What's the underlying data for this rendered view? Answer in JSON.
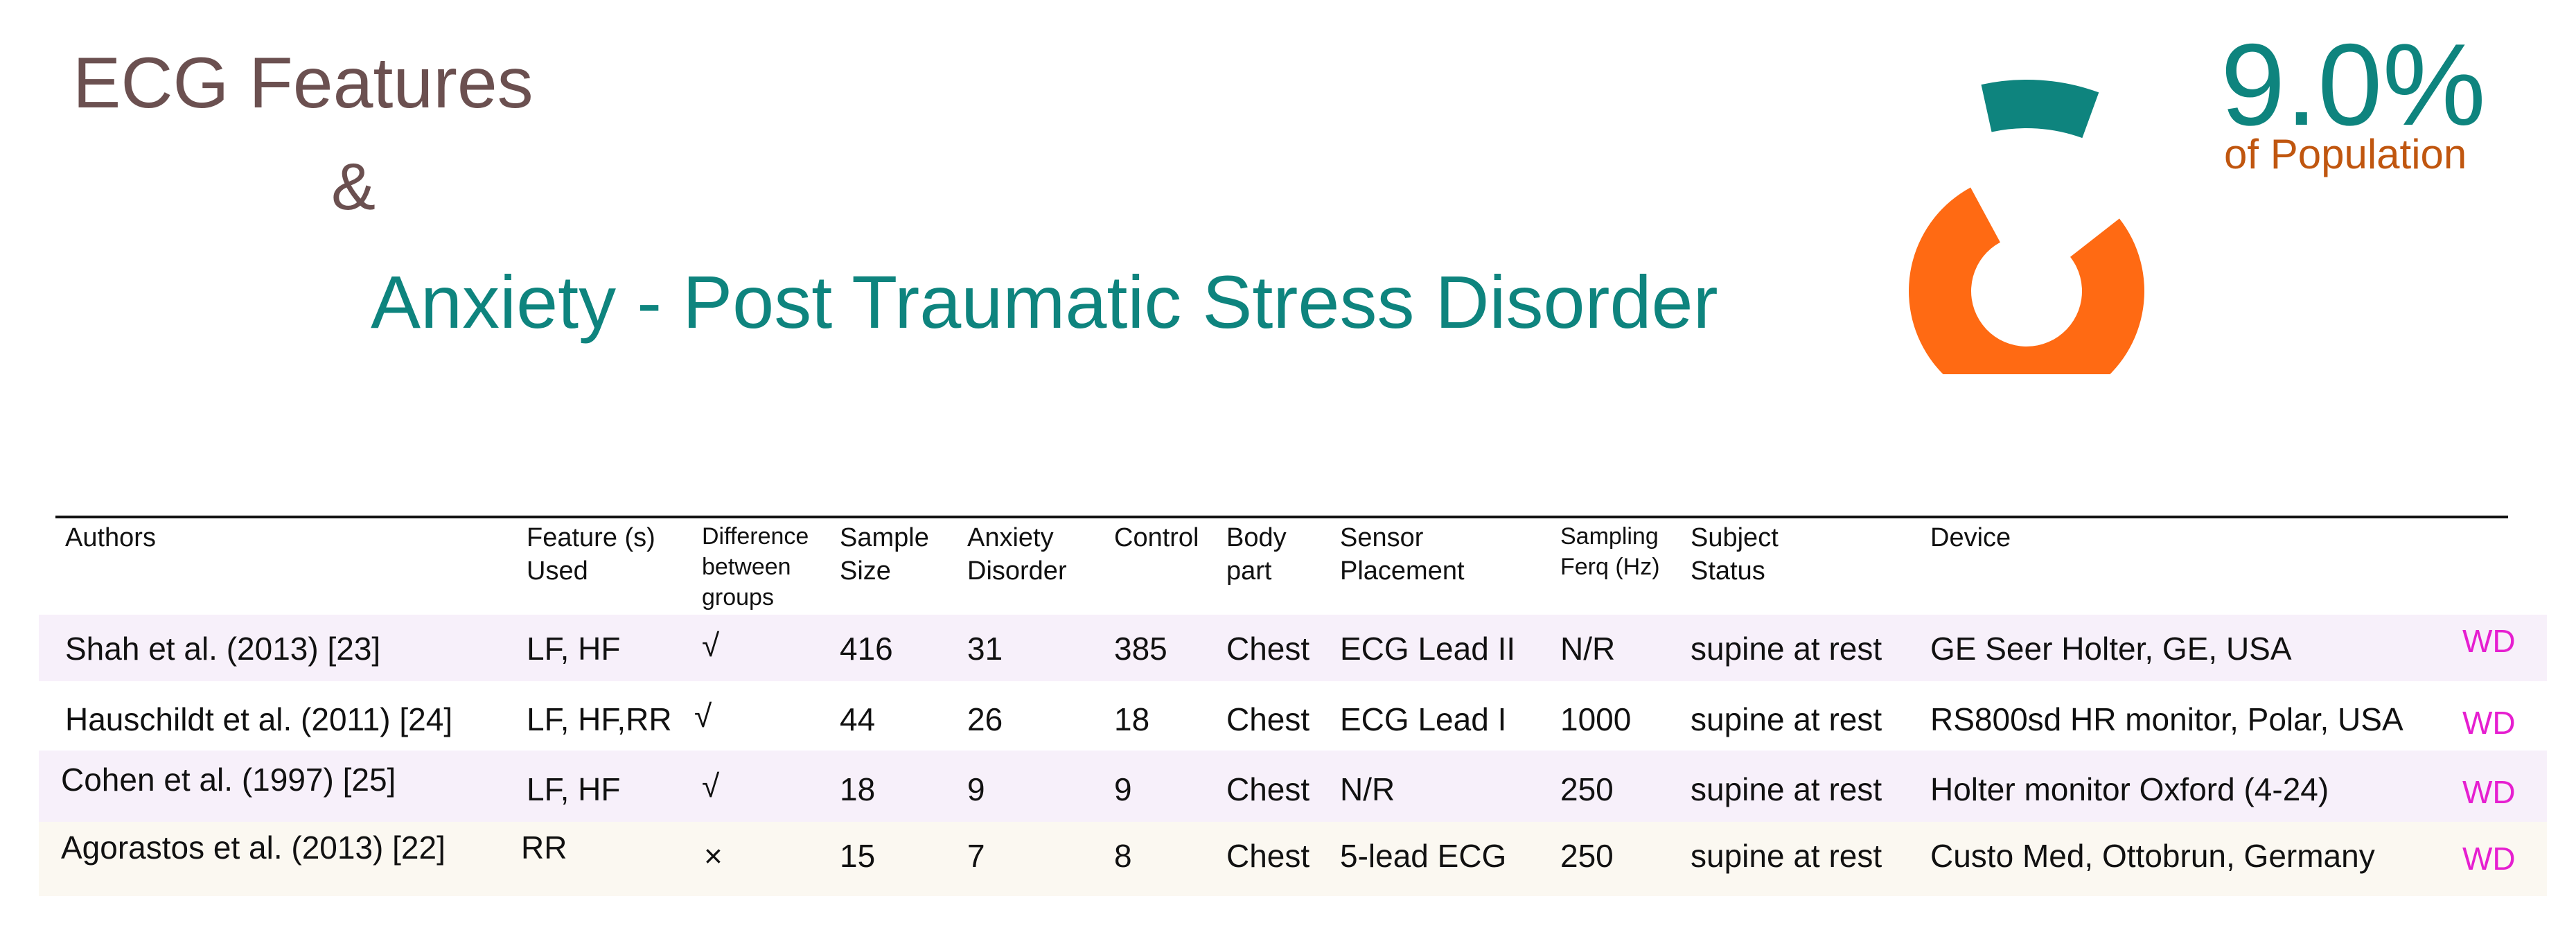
{
  "slide": {
    "title_line1": "ECG Features",
    "ampersand": "&",
    "title_line2": "Anxiety - Post Traumatic Stress Disorder"
  },
  "stat": {
    "value": "9.0%",
    "label": "of Population",
    "fraction": 0.09,
    "colors": {
      "highlight": "#0e847e",
      "remainder": "#ff6a13",
      "label": "#c0560f"
    }
  },
  "table": {
    "headers": [
      "Authors",
      "Feature (s)\nUsed",
      "Difference\nbetween\ngroups",
      "Sample\nSize",
      "Anxiety\nDisorder",
      "Control",
      "Body\npart",
      "Sensor\nPlacement",
      "Sampling\nFerq (Hz)",
      "Subject\nStatus",
      "Device"
    ],
    "rows": [
      {
        "cells": [
          "Shah et al.   (2013)  [23]",
          "LF, HF",
          "√",
          "416",
          "31",
          "385",
          "Chest",
          "ECG Lead II",
          "N/R",
          "supine at rest",
          "GE Seer Holter, GE, USA"
        ],
        "tag": "WD"
      },
      {
        "cells": [
          "Hauschildt et al. (2011) [24]",
          "LF, HF,RR",
          "√",
          "44",
          "26",
          "18",
          "Chest",
          "ECG Lead I",
          "1000",
          "supine at rest",
          "RS800sd HR monitor, Polar, USA"
        ],
        "tag": "WD"
      },
      {
        "cells": [
          "Cohen  et al.   (1997)  [25]",
          "LF, HF",
          "√",
          "18",
          "9",
          "9",
          "Chest",
          "N/R",
          "250",
          "supine at rest",
          "Holter monitor Oxford (4-24)"
        ],
        "tag": "WD"
      },
      {
        "cells": [
          "Agorastos  et al.  (2013)  [22]",
          "RR",
          "×",
          "15",
          "7",
          "8",
          "Chest",
          "5-lead ECG",
          "250",
          "supine at rest",
          "Custo Med, Ottobrun, Germany"
        ],
        "tag": "WD"
      }
    ]
  }
}
